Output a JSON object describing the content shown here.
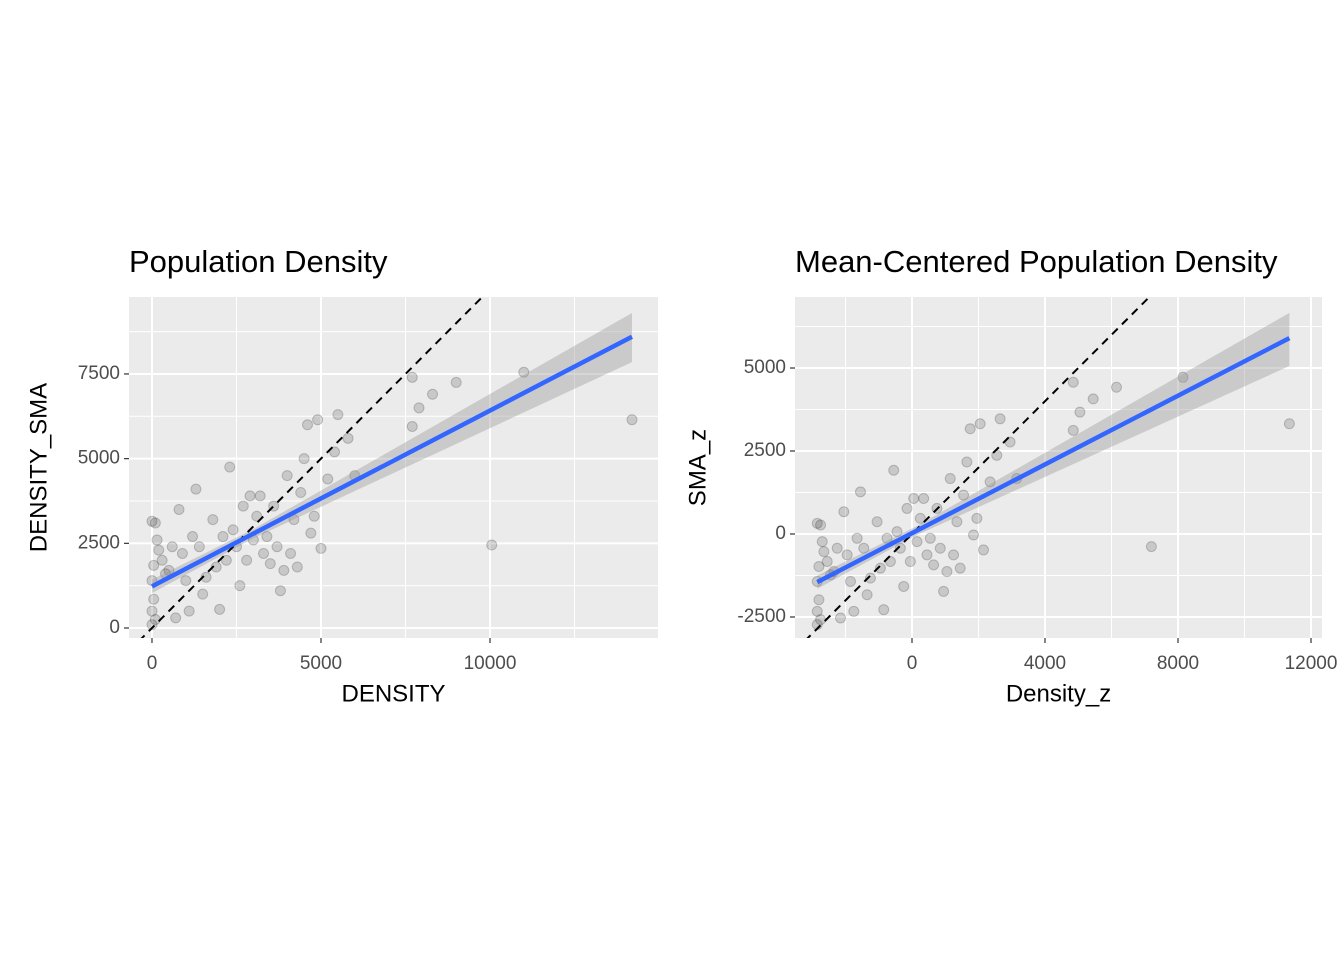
{
  "chart_data": [
    {
      "type": "scatter",
      "title": "Population Density",
      "xlabel": "DENSITY",
      "ylabel": "DENSITY_SMA",
      "xlim": [
        -680,
        14970
      ],
      "ylim": [
        -295,
        9772
      ],
      "xticks": [
        0,
        5000,
        10000
      ],
      "yticks": [
        0,
        2500,
        5000,
        7500
      ],
      "grid": true,
      "series": [
        {
          "type": "scatter",
          "color": "#000000",
          "x": [
            0,
            100,
            50,
            0,
            50,
            0,
            100,
            0,
            150,
            200,
            300,
            400,
            500,
            600,
            700,
            800,
            900,
            1000,
            1100,
            1200,
            1300,
            1400,
            1500,
            1600,
            1800,
            1900,
            2000,
            2100,
            2200,
            2300,
            2400,
            2500,
            2600,
            2700,
            2800,
            2900,
            3000,
            3100,
            3200,
            3300,
            3400,
            3500,
            3600,
            3700,
            3800,
            3900,
            4000,
            4100,
            4200,
            4300,
            4400,
            4500,
            4600,
            4700,
            4800,
            4900,
            5000,
            5200,
            5400,
            5500,
            5800,
            6000,
            7700,
            7700,
            7900,
            8300,
            9000,
            10050,
            11000,
            14200
          ],
          "values": [
            3150,
            3100,
            1850,
            1400,
            850,
            500,
            250,
            100,
            2600,
            2300,
            2000,
            1600,
            1700,
            2400,
            300,
            3500,
            2200,
            1400,
            500,
            2700,
            4100,
            2400,
            1000,
            1500,
            3200,
            1800,
            550,
            2700,
            2000,
            4750,
            2900,
            2400,
            1250,
            3600,
            2000,
            3900,
            2600,
            3300,
            3900,
            2200,
            2700,
            1900,
            3600,
            2400,
            1100,
            1700,
            4500,
            2200,
            3200,
            1800,
            4000,
            5000,
            6000,
            2800,
            3300,
            6150,
            2350,
            4400,
            5200,
            6300,
            5600,
            4500,
            7400,
            5950,
            6500,
            6900,
            7250,
            2450,
            7550,
            6150
          ]
        },
        {
          "type": "ribbon",
          "color": "#999999",
          "x": [
            0,
            3000,
            14200
          ],
          "lower": [
            1030,
            2650,
            7850
          ],
          "upper": [
            1430,
            2920,
            9300
          ]
        },
        {
          "type": "line",
          "color": "#3366ff",
          "x": [
            0,
            14200
          ],
          "values": [
            1230,
            8600
          ]
        },
        {
          "type": "abline",
          "color": "#000000",
          "dash": true,
          "slope": 1,
          "intercept": 0
        }
      ]
    },
    {
      "type": "scatter",
      "title": "Mean-Centered Population Density",
      "xlabel": "Density_z",
      "ylabel": "SMA_z",
      "xlim": [
        -3519,
        12331
      ],
      "ylim": [
        -3133,
        7139
      ],
      "xticks": [
        0,
        4000,
        8000,
        12000
      ],
      "yticks": [
        -2500,
        0,
        2500,
        5000
      ],
      "grid": true,
      "series": [
        {
          "type": "scatter",
          "color": "#000000",
          "x": [
            -2850,
            -2750,
            -2800,
            -2850,
            -2800,
            -2850,
            -2750,
            -2850,
            -2700,
            -2650,
            -2550,
            -2450,
            -2350,
            -2250,
            -2150,
            -2050,
            -1950,
            -1850,
            -1750,
            -1650,
            -1550,
            -1450,
            -1350,
            -1250,
            -1050,
            -950,
            -850,
            -750,
            -650,
            -550,
            -450,
            -350,
            -250,
            -150,
            -50,
            50,
            150,
            250,
            350,
            450,
            550,
            650,
            750,
            850,
            950,
            1050,
            1150,
            1250,
            1350,
            1450,
            1550,
            1650,
            1750,
            1850,
            1950,
            2050,
            2150,
            2350,
            2550,
            2650,
            2950,
            3150,
            4850,
            4850,
            5050,
            5450,
            6150,
            7200,
            8150,
            11350
          ],
          "values": [
            320,
            270,
            -980,
            -1430,
            -1980,
            -2330,
            -2580,
            -2730,
            -230,
            -530,
            -830,
            -1230,
            -1130,
            -430,
            -2530,
            670,
            -630,
            -1430,
            -2330,
            -130,
            1270,
            -430,
            -1830,
            -1330,
            370,
            -1030,
            -2280,
            -130,
            -830,
            1920,
            70,
            -430,
            -1580,
            770,
            -830,
            1070,
            -230,
            470,
            1070,
            -630,
            -130,
            -930,
            770,
            -430,
            -1730,
            -1130,
            1670,
            -630,
            370,
            -1030,
            1170,
            2170,
            3170,
            -30,
            470,
            3320,
            -480,
            1570,
            2370,
            3470,
            2770,
            1670,
            4570,
            3120,
            3670,
            4070,
            4420,
            -380,
            4720,
            3320
          ]
        },
        {
          "type": "ribbon",
          "color": "#999999",
          "x": [
            -2850,
            150,
            11350
          ],
          "lower": [
            -1650,
            -30,
            5060
          ],
          "upper": [
            -1250,
            240,
            6660
          ]
        },
        {
          "type": "line",
          "color": "#3366ff",
          "x": [
            -2850,
            11350
          ],
          "values": [
            -1450,
            5900
          ]
        },
        {
          "type": "abline",
          "color": "#000000",
          "dash": true,
          "slope": 1,
          "intercept": 0
        }
      ]
    }
  ]
}
